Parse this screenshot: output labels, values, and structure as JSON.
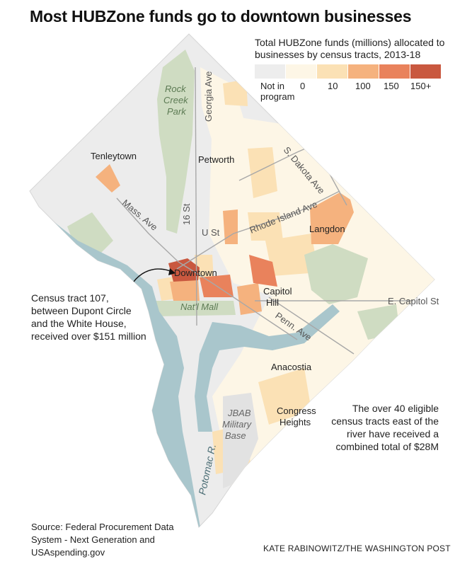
{
  "title": "Most HUBZone funds go to downtown businesses",
  "legend": {
    "title_line1": "Total HUBZone funds (millions) allocated to",
    "title_line2": "businesses by census tracts, 2013-18",
    "items": [
      {
        "label_line1": "Not in",
        "label_line2": "program",
        "color": "#ededed"
      },
      {
        "label": "0",
        "color": "#fdf6e6"
      },
      {
        "label": "10",
        "color": "#fbe1b5"
      },
      {
        "label": "100",
        "color": "#f5b27e"
      },
      {
        "label": "150",
        "color": "#e9825c"
      },
      {
        "label": "150+",
        "color": "#c9583f"
      }
    ]
  },
  "place_labels": {
    "rock_creek_line1": "Rock",
    "rock_creek_line2": "Creek",
    "rock_creek_line3": "Park",
    "georgia_ave": "Georgia Ave",
    "tenleytown": "Tenleytown",
    "petworth": "Petworth",
    "s_dakota_ave": "S. Dakota Ave",
    "mass_ave": "Mass. Ave",
    "sixteenth_st": "16 St",
    "rhode_island_ave": "Rhode Island Ave",
    "u_st": "U St",
    "langdon": "Langdon",
    "downtown": "Downtown",
    "capitol_hill_line1": "Capitol",
    "capitol_hill_line2": "Hill",
    "e_capitol_st": "E. Capitol St",
    "natl_mall": "Nat'l Mall",
    "penn_ave": "Penn. Ave",
    "anacostia": "Anacostia",
    "jbab_line1": "JBAB",
    "jbab_line2": "Military",
    "jbab_line3": "Base",
    "congress_heights_line1": "Congress",
    "congress_heights_line2": "Heights",
    "potomac": "Potomac R."
  },
  "annotations": {
    "tract107": [
      "Census tract 107,",
      "between Dupont Circle",
      "and the White House,",
      "received over $151 million"
    ],
    "east_river": [
      "The over 40 eligible",
      "census tracts east of the",
      "river have received a",
      "combined total of $28M"
    ]
  },
  "source": [
    "Source: Federal Procurement Data",
    "System - Next Generation and",
    "USAspending.gov"
  ],
  "credit": "KATE RABINOWITZ/THE WASHINGTON POST",
  "colors": {
    "not_in_program": "#ededed",
    "zero": "#fdf6e6",
    "ten": "#fbe1b5",
    "hundred": "#f5b27e",
    "one_fifty": "#e9825c",
    "one_fifty_plus": "#c9583f",
    "park": "#cfdcc2",
    "river": "#a9c6cc",
    "road": "#a8a8a8"
  }
}
